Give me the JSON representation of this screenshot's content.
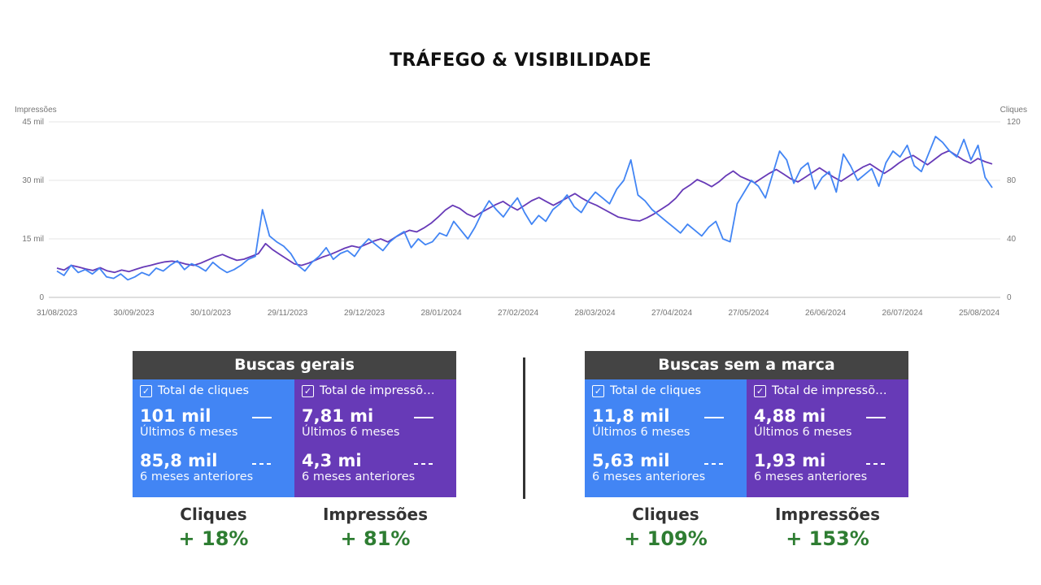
{
  "page": {
    "title": "TRÁFEGO & VISIBILIDADE"
  },
  "chart_data": {
    "type": "line",
    "ylabel_left": "Impressões",
    "ylabel_right": "Cliques",
    "left_ticks": [
      "0",
      "15 mil",
      "30 mil",
      "45 mil"
    ],
    "right_ticks": [
      "0",
      "40",
      "80",
      "120"
    ],
    "x_tick_labels": [
      "31/08/2023",
      "30/09/2023",
      "30/10/2023",
      "29/11/2023",
      "29/12/2023",
      "28/01/2024",
      "27/02/2024",
      "28/03/2024",
      "27/04/2024",
      "27/05/2024",
      "26/06/2024",
      "26/07/2024",
      "25/08/2024"
    ],
    "ylim_left": [
      0,
      45000
    ],
    "ylim_right": [
      0,
      120
    ],
    "grid": true,
    "series": [
      {
        "name": "Cliques",
        "axis": "right",
        "color": "#4285f4",
        "values": [
          18,
          15,
          22,
          17,
          19,
          16,
          20,
          14,
          13,
          16,
          12,
          14,
          17,
          15,
          20,
          18,
          22,
          25,
          19,
          23,
          21,
          18,
          24,
          20,
          17,
          19,
          22,
          26,
          28,
          60,
          42,
          38,
          35,
          30,
          22,
          18,
          24,
          28,
          34,
          26,
          30,
          32,
          28,
          35,
          40,
          36,
          32,
          38,
          42,
          45,
          34,
          40,
          36,
          38,
          44,
          42,
          52,
          46,
          40,
          48,
          58,
          66,
          60,
          55,
          62,
          68,
          58,
          50,
          56,
          52,
          60,
          64,
          70,
          62,
          58,
          66,
          72,
          68,
          64,
          74,
          80,
          94,
          70,
          66,
          60,
          56,
          52,
          48,
          44,
          50,
          46,
          42,
          48,
          52,
          40,
          38,
          64,
          72,
          80,
          76,
          68,
          84,
          100,
          94,
          78,
          88,
          92,
          74,
          82,
          86,
          72,
          98,
          90,
          80,
          84,
          88,
          76,
          92,
          100,
          96,
          104,
          90,
          86,
          98,
          110,
          106,
          100,
          96,
          108,
          94,
          104,
          82,
          75
        ]
      },
      {
        "name": "Impressões",
        "axis": "left",
        "color": "#673ab7",
        "values": [
          7500,
          7000,
          8200,
          7800,
          7300,
          6900,
          7600,
          6800,
          6400,
          7000,
          6600,
          7200,
          7800,
          8200,
          8700,
          9100,
          9300,
          9000,
          8500,
          8200,
          8800,
          9600,
          10400,
          11000,
          10200,
          9500,
          9800,
          10500,
          11200,
          13800,
          12200,
          11000,
          9800,
          8600,
          8200,
          8800,
          9600,
          10400,
          11000,
          11800,
          12600,
          13200,
          12800,
          13600,
          14400,
          15000,
          14200,
          15400,
          16400,
          17200,
          16800,
          17800,
          19000,
          20600,
          22400,
          23600,
          22800,
          21400,
          20600,
          21800,
          22800,
          23800,
          24600,
          23400,
          22400,
          23600,
          24800,
          25600,
          24600,
          23600,
          24600,
          25600,
          26600,
          25400,
          24400,
          23600,
          22600,
          21600,
          20600,
          20200,
          19800,
          19600,
          20400,
          21400,
          22600,
          23800,
          25400,
          27600,
          28800,
          30200,
          29400,
          28400,
          29600,
          31200,
          32400,
          31000,
          30200,
          29400,
          30600,
          31800,
          32800,
          31600,
          30400,
          29600,
          30800,
          32000,
          33200,
          32000,
          30800,
          29800,
          31000,
          32200,
          33400,
          34200,
          33000,
          31800,
          33000,
          34400,
          35600,
          36400,
          35200,
          34000,
          35400,
          36800,
          37600,
          36400,
          35200,
          34400,
          35600,
          34800,
          34200
        ]
      }
    ]
  },
  "cards": [
    {
      "title": "Buscas gerais",
      "metrics": [
        {
          "label": "Total de cliques",
          "current": "101 mil",
          "current_label": "Últimos 6 meses",
          "previous": "85,8 mil",
          "previous_label": "6 meses anteriores"
        },
        {
          "label": "Total de impressõ…",
          "current": "7,81 mi",
          "current_label": "Últimos 6 meses",
          "previous": "4,3 mi",
          "previous_label": "6 meses anteriores"
        }
      ],
      "footer": [
        {
          "label": "Cliques",
          "delta": "+ 18%"
        },
        {
          "label": "Impressões",
          "delta": "+ 81%"
        }
      ]
    },
    {
      "title": "Buscas sem a marca",
      "metrics": [
        {
          "label": "Total de cliques",
          "current": "11,8 mil",
          "current_label": "Últimos 6 meses",
          "previous": "5,63 mil",
          "previous_label": "6 meses anteriores"
        },
        {
          "label": "Total de impressõ…",
          "current": "4,88 mi",
          "current_label": "Últimos 6 meses",
          "previous": "1,93 mi",
          "previous_label": "6 meses anteriores"
        }
      ],
      "footer": [
        {
          "label": "Cliques",
          "delta": "+ 109%"
        },
        {
          "label": "Impressões",
          "delta": "+ 153%"
        }
      ]
    }
  ]
}
